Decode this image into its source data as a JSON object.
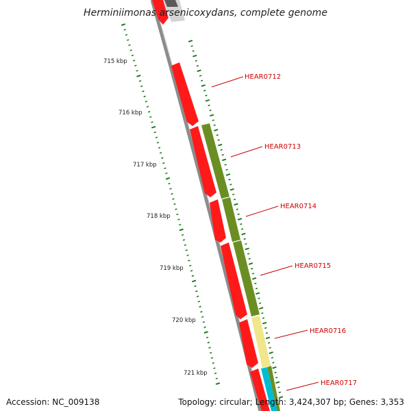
{
  "title": "Herminiimonas arsenicoxydans, complete genome",
  "accession_text": "Accession: NC_009138",
  "topology_text": "Topology: circular; Length: 3,424,307 bp; Genes: 3,353",
  "scale_labels": [
    "715 kbp",
    "716 kbp",
    "717 kbp",
    "718 kbp",
    "719 kbp",
    "720 kbp",
    "721 kbp"
  ],
  "gene_labels": [
    "HEAR0712",
    "HEAR0713",
    "HEAR0714",
    "HEAR0715",
    "HEAR0716",
    "HEAR0717"
  ],
  "colors": {
    "backbone": "#8c8c8c",
    "scale_ticks": "#1a7a1a",
    "forward_genes": "#ff1a1a",
    "cog_olive": "#6b8e23",
    "cog_khaki": "#f0e68c",
    "cog_cyan": "#00bcd4",
    "gene_label_text": "#cc0000",
    "leader_line": "#cc0000"
  }
}
